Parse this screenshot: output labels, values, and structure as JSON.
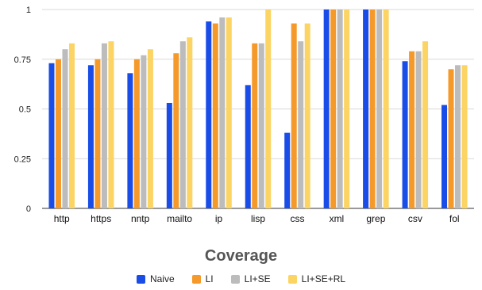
{
  "chart_data": {
    "type": "bar",
    "title": "Coverage",
    "ylim": [
      0,
      1
    ],
    "yticks": [
      "0",
      "0.25",
      "0.5",
      "0.75",
      "1"
    ],
    "ytick_values": [
      0,
      0.25,
      0.5,
      0.75,
      1
    ],
    "categories": [
      "http",
      "https",
      "nntp",
      "mailto",
      "ip",
      "lisp",
      "css",
      "xml",
      "grep",
      "csv",
      "fol"
    ],
    "series": [
      {
        "name": "Naive",
        "color": "#1a4de8",
        "values": [
          0.73,
          0.72,
          0.68,
          0.53,
          0.94,
          0.62,
          0.38,
          1.0,
          1.0,
          0.74,
          0.52
        ]
      },
      {
        "name": "LI",
        "color": "#f59a2a",
        "values": [
          0.75,
          0.75,
          0.75,
          0.78,
          0.93,
          0.83,
          0.93,
          1.0,
          1.0,
          0.79,
          0.7
        ]
      },
      {
        "name": "LI+SE",
        "color": "#bcbcbc",
        "values": [
          0.8,
          0.83,
          0.77,
          0.84,
          0.96,
          0.83,
          0.84,
          1.0,
          1.0,
          0.79,
          0.72
        ]
      },
      {
        "name": "LI+SE+RL",
        "color": "#fbd464",
        "values": [
          0.83,
          0.84,
          0.8,
          0.86,
          0.96,
          1.0,
          0.93,
          1.0,
          1.0,
          0.84,
          0.72
        ]
      }
    ],
    "grid": true,
    "legend_position": "bottom"
  }
}
